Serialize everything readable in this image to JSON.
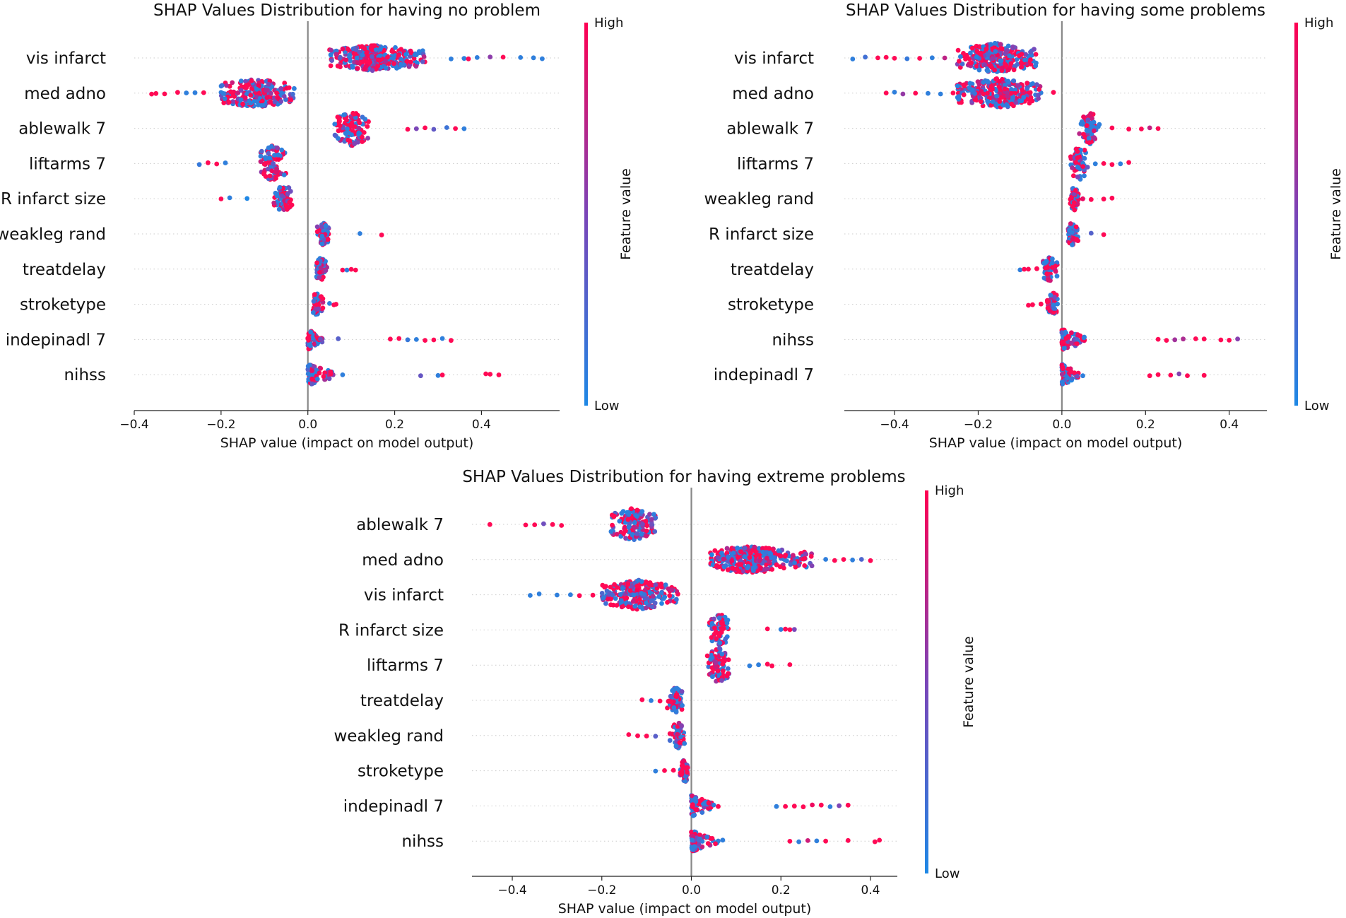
{
  "colorbar": {
    "high_label": "High",
    "low_label": "Low",
    "title": "Feature value",
    "high_color": "#ff0052",
    "low_color": "#1e88e5"
  },
  "chart_data": [
    {
      "type": "scatter",
      "subtype": "shap-beeswarm",
      "title": "SHAP Values Distribution for having no problem",
      "xlabel": "SHAP value (impact on model output)",
      "xlim": [
        -0.4,
        0.58
      ],
      "xticks": [
        -0.4,
        -0.2,
        0.0,
        0.2,
        0.4
      ],
      "xtick_labels": [
        "−0.4",
        "−0.2",
        "0.0",
        "0.2",
        "0.4"
      ],
      "features": [
        {
          "name": "vis infarct",
          "core": [
            0.05,
            0.27
          ],
          "peak": 0.15,
          "spread": 0.36,
          "outliers": [
            0.33,
            0.36,
            0.37,
            0.39,
            0.42,
            0.45,
            0.49,
            0.52,
            0.54
          ]
        },
        {
          "name": "med adno",
          "core": [
            -0.2,
            -0.03
          ],
          "peak": -0.12,
          "spread": 0.42,
          "outliers": [
            -0.36,
            -0.35,
            -0.33,
            -0.3,
            -0.28,
            -0.26,
            -0.24
          ]
        },
        {
          "name": "ablewalk 7",
          "core": [
            0.06,
            0.14
          ],
          "peak": 0.1,
          "spread": 0.5,
          "outliers": [
            0.23,
            0.25,
            0.27,
            0.29,
            0.32,
            0.34,
            0.36
          ]
        },
        {
          "name": "liftarms 7",
          "core": [
            -0.11,
            -0.05
          ],
          "peak": -0.08,
          "spread": 0.52,
          "outliers": [
            -0.25,
            -0.23,
            -0.21,
            -0.19
          ]
        },
        {
          "name": "R infarct size",
          "core": [
            -0.08,
            -0.03
          ],
          "peak": -0.055,
          "spread": 0.38,
          "outliers": [
            -0.2,
            -0.18,
            -0.14
          ]
        },
        {
          "name": "weakleg rand",
          "core": [
            0.02,
            0.05
          ],
          "peak": 0.035,
          "spread": 0.32,
          "outliers": [
            0.12,
            0.17
          ]
        },
        {
          "name": "treatdelay",
          "core": [
            0.02,
            0.045
          ],
          "peak": 0.03,
          "spread": 0.34,
          "outliers": [
            0.08,
            0.09,
            0.1,
            0.11
          ]
        },
        {
          "name": "stroketype",
          "core": [
            0.012,
            0.035
          ],
          "peak": 0.02,
          "spread": 0.34,
          "outliers": [
            0.05,
            0.06,
            0.065
          ]
        },
        {
          "name": "indepinadl 7",
          "core": [
            0.0,
            0.035
          ],
          "peak": 0.0,
          "spread": 0.3,
          "outliers": [
            0.07,
            0.19,
            0.21,
            0.23,
            0.25,
            0.27,
            0.29,
            0.31,
            0.33
          ]
        },
        {
          "name": "nihss",
          "core": [
            0.0,
            0.06
          ],
          "peak": 0.0,
          "spread": 0.3,
          "outliers": [
            0.08,
            0.26,
            0.3,
            0.31,
            0.41,
            0.42,
            0.44
          ]
        }
      ]
    },
    {
      "type": "scatter",
      "subtype": "shap-beeswarm",
      "title": "SHAP Values Distribution for having some problems",
      "xlabel": "SHAP value (impact on model output)",
      "xlim": [
        -0.52,
        0.49
      ],
      "xticks": [
        -0.4,
        -0.2,
        0.0,
        0.2,
        0.4
      ],
      "xtick_labels": [
        "−0.4",
        "−0.2",
        "0.0",
        "0.2",
        "0.4"
      ],
      "features": [
        {
          "name": "vis infarct",
          "core": [
            -0.25,
            -0.06
          ],
          "peak": -0.16,
          "spread": 0.42,
          "outliers": [
            -0.5,
            -0.47,
            -0.44,
            -0.42,
            -0.4,
            -0.37,
            -0.34,
            -0.31,
            -0.28
          ]
        },
        {
          "name": "med adno",
          "core": [
            -0.25,
            -0.05
          ],
          "peak": -0.15,
          "spread": 0.42,
          "outliers": [
            -0.42,
            -0.4,
            -0.38,
            -0.35,
            -0.32,
            -0.29,
            -0.26,
            -0.02
          ]
        },
        {
          "name": "ablewalk 7",
          "core": [
            0.04,
            0.09
          ],
          "peak": 0.065,
          "spread": 0.48,
          "outliers": [
            0.12,
            0.16,
            0.19,
            0.21,
            0.23
          ]
        },
        {
          "name": "liftarms 7",
          "core": [
            0.02,
            0.065
          ],
          "peak": 0.04,
          "spread": 0.5,
          "outliers": [
            0.08,
            0.1,
            0.12,
            0.14,
            0.16
          ]
        },
        {
          "name": "weakleg rand",
          "core": [
            0.02,
            0.04
          ],
          "peak": 0.03,
          "spread": 0.34,
          "outliers": [
            0.05,
            0.07,
            0.1,
            0.12
          ]
        },
        {
          "name": "R infarct size",
          "core": [
            0.015,
            0.04
          ],
          "peak": 0.025,
          "spread": 0.34,
          "outliers": [
            0.07,
            0.1
          ]
        },
        {
          "name": "treatdelay",
          "core": [
            -0.045,
            -0.01
          ],
          "peak": -0.03,
          "spread": 0.36,
          "outliers": [
            -0.1,
            -0.09,
            -0.08,
            -0.06
          ]
        },
        {
          "name": "stroketype",
          "core": [
            -0.035,
            -0.01
          ],
          "peak": -0.02,
          "spread": 0.34,
          "outliers": [
            -0.08,
            -0.07,
            -0.05
          ]
        },
        {
          "name": "nihss",
          "core": [
            0.0,
            0.06
          ],
          "peak": 0.0,
          "spread": 0.3,
          "outliers": [
            0.23,
            0.25,
            0.27,
            0.29,
            0.32,
            0.34,
            0.38,
            0.4,
            0.42
          ]
        },
        {
          "name": "indepinadl 7",
          "core": [
            0.0,
            0.04
          ],
          "peak": 0.0,
          "spread": 0.3,
          "outliers": [
            0.05,
            0.21,
            0.23,
            0.26,
            0.28,
            0.3,
            0.34
          ]
        }
      ]
    },
    {
      "type": "scatter",
      "subtype": "shap-beeswarm",
      "title": "SHAP Values Distribution for having extreme problems",
      "xlabel": "SHAP value (impact on model output)",
      "xlim": [
        -0.49,
        0.46
      ],
      "xticks": [
        -0.4,
        -0.2,
        0.0,
        0.2,
        0.4
      ],
      "xtick_labels": [
        "−0.4",
        "−0.2",
        "0.0",
        "0.2",
        "0.4"
      ],
      "features": [
        {
          "name": "ablewalk 7",
          "core": [
            -0.18,
            -0.08
          ],
          "peak": -0.13,
          "spread": 0.46,
          "outliers": [
            -0.45,
            -0.37,
            -0.35,
            -0.33,
            -0.31,
            -0.29
          ]
        },
        {
          "name": "med adno",
          "core": [
            0.04,
            0.27
          ],
          "peak": 0.13,
          "spread": 0.38,
          "outliers": [
            0.3,
            0.32,
            0.34,
            0.36,
            0.38,
            0.4
          ]
        },
        {
          "name": "vis infarct",
          "core": [
            -0.2,
            -0.03
          ],
          "peak": -0.12,
          "spread": 0.42,
          "outliers": [
            -0.36,
            -0.34,
            -0.3,
            -0.27,
            -0.25,
            -0.22
          ]
        },
        {
          "name": "R infarct size",
          "core": [
            0.04,
            0.085
          ],
          "peak": 0.065,
          "spread": 0.46,
          "outliers": [
            0.17,
            0.2,
            0.21,
            0.22,
            0.23
          ]
        },
        {
          "name": "liftarms 7",
          "core": [
            0.035,
            0.09
          ],
          "peak": 0.06,
          "spread": 0.5,
          "outliers": [
            0.13,
            0.15,
            0.17,
            0.18,
            0.22
          ]
        },
        {
          "name": "treatdelay",
          "core": [
            -0.055,
            -0.02
          ],
          "peak": -0.035,
          "spread": 0.38,
          "outliers": [
            -0.11,
            -0.09,
            -0.07
          ]
        },
        {
          "name": "weakleg rand",
          "core": [
            -0.05,
            -0.015
          ],
          "peak": -0.03,
          "spread": 0.38,
          "outliers": [
            -0.14,
            -0.12,
            -0.1,
            -0.08
          ]
        },
        {
          "name": "stroketype",
          "core": [
            -0.025,
            -0.008
          ],
          "peak": -0.015,
          "spread": 0.34,
          "outliers": [
            -0.08,
            -0.06,
            -0.04
          ]
        },
        {
          "name": "indepinadl 7",
          "core": [
            0.0,
            0.05
          ],
          "peak": 0.0,
          "spread": 0.3,
          "outliers": [
            0.06,
            0.19,
            0.21,
            0.23,
            0.25,
            0.27,
            0.29,
            0.31,
            0.33,
            0.35
          ]
        },
        {
          "name": "nihss",
          "core": [
            0.0,
            0.06
          ],
          "peak": 0.0,
          "spread": 0.3,
          "outliers": [
            0.07,
            0.22,
            0.24,
            0.26,
            0.28,
            0.3,
            0.35,
            0.41,
            0.42
          ]
        }
      ]
    }
  ]
}
